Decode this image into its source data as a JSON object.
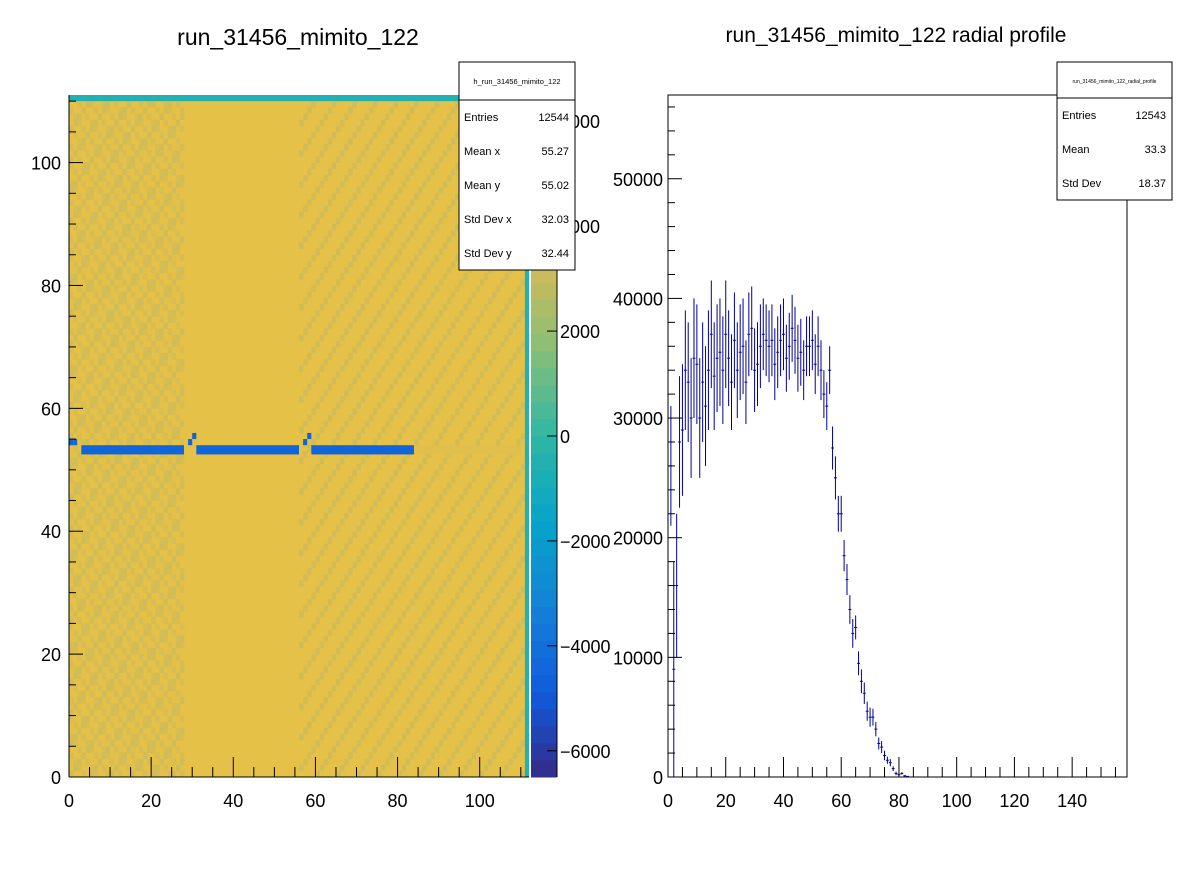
{
  "chart_data": [
    {
      "type": "heatmap",
      "title": "run_31456_mimito_122",
      "xlim": [
        0,
        112
      ],
      "ylim": [
        0,
        111
      ],
      "x_ticks": [
        0,
        20,
        40,
        60,
        80,
        100
      ],
      "y_ticks": [
        0,
        20,
        40,
        60,
        80,
        100
      ],
      "grid": false,
      "bins_x": 112,
      "bins_y": 111,
      "background_level": 4000,
      "top_row_level": -500,
      "right_column_level": -500,
      "low_band": {
        "y_bin": 53,
        "level": -4500,
        "segments": [
          [
            3,
            28
          ],
          [
            31,
            56
          ],
          [
            59,
            84
          ]
        ],
        "edge_level": -4500,
        "edge_cells": [
          [
            0,
            54
          ],
          [
            1,
            54
          ],
          [
            29,
            54
          ],
          [
            30,
            55
          ],
          [
            57,
            54
          ],
          [
            58,
            55
          ]
        ]
      },
      "faded_segment": {
        "y_bin": 53,
        "x_range": [
          84,
          110
        ],
        "level": 3800
      },
      "colorbar": {
        "zlim": [
          -6500,
          6500
        ],
        "ticks": [
          -6000,
          -4000,
          -2000,
          0,
          2000,
          4000,
          6000
        ],
        "tick_labels": [
          "−6000",
          "−4000",
          "−2000",
          "0",
          "2000",
          "4000",
          "6000"
        ],
        "palette": [
          "#352a87",
          "#0f5cdd",
          "#1481d6",
          "#06a4ca",
          "#2eb7a4",
          "#87bf77",
          "#d1bb59",
          "#fec832",
          "#f9fb0e"
        ]
      },
      "stats_box": {
        "name": "h_run_31456_mimito_122",
        "rows": [
          {
            "label": "Entries",
            "value": "12544"
          },
          {
            "label": "Mean x",
            "value": "55.27"
          },
          {
            "label": "Mean y",
            "value": "55.02"
          },
          {
            "label": "Std Dev x",
            "value": "32.03"
          },
          {
            "label": "Std Dev y",
            "value": "32.44"
          }
        ]
      }
    },
    {
      "type": "scatter",
      "style": "error-bars",
      "title": "run_31456_mimito_122 radial profile",
      "xlim": [
        0,
        159
      ],
      "ylim": [
        0,
        57000
      ],
      "x_ticks": [
        0,
        20,
        40,
        60,
        80,
        100,
        120,
        140
      ],
      "y_ticks": [
        0,
        10000,
        20000,
        30000,
        40000,
        50000
      ],
      "grid": false,
      "color": "#000099",
      "bin_width": 1,
      "x": [
        1,
        2,
        3,
        4,
        5,
        6,
        7,
        8,
        9,
        10,
        11,
        12,
        13,
        14,
        15,
        16,
        17,
        18,
        19,
        20,
        21,
        22,
        23,
        24,
        25,
        26,
        27,
        28,
        29,
        30,
        31,
        32,
        33,
        34,
        35,
        36,
        37,
        38,
        39,
        40,
        41,
        42,
        43,
        44,
        45,
        46,
        47,
        48,
        49,
        50,
        51,
        52,
        53,
        54,
        55,
        56,
        57,
        58,
        59,
        60,
        61,
        62,
        63,
        64,
        65,
        66,
        67,
        68,
        69,
        70,
        71,
        72,
        73,
        74,
        75,
        76,
        77,
        78,
        79,
        80,
        81,
        82,
        83
      ],
      "y": [
        26000,
        9000,
        16000,
        28000,
        29000,
        34000,
        33000,
        30000,
        35000,
        34500,
        30000,
        33000,
        31000,
        34000,
        37000,
        33500,
        35000,
        35500,
        34000,
        37000,
        35000,
        33000,
        36500,
        34000,
        35500,
        36000,
        33000,
        37000,
        37500,
        34000,
        34500,
        36000,
        37000,
        36500,
        36000,
        36500,
        34500,
        35500,
        36500,
        37000,
        35000,
        36000,
        37500,
        36500,
        35000,
        35500,
        34000,
        36000,
        36000,
        36500,
        34500,
        36000,
        34000,
        32000,
        31000,
        34000,
        27500,
        25000,
        22000,
        22000,
        18500,
        16500,
        14000,
        12000,
        12500,
        9500,
        8000,
        7000,
        5500,
        5000,
        5000,
        4000,
        2800,
        2500,
        1800,
        1400,
        1200,
        700,
        300,
        200,
        300,
        100,
        50
      ],
      "err": [
        5000,
        9000,
        6000,
        5500,
        5500,
        5000,
        5000,
        5000,
        5000,
        5000,
        5000,
        5000,
        5000,
        5000,
        4500,
        4500,
        4500,
        4500,
        4500,
        4500,
        4000,
        4000,
        4000,
        4000,
        4000,
        4000,
        3500,
        3500,
        3500,
        3500,
        3500,
        3500,
        3000,
        3000,
        3000,
        3000,
        3000,
        3000,
        3000,
        3000,
        2800,
        2800,
        2800,
        2800,
        2800,
        2800,
        2500,
        2500,
        2500,
        2500,
        2500,
        2500,
        2500,
        2000,
        2000,
        2000,
        1800,
        1800,
        1500,
        1500,
        1300,
        1300,
        1200,
        1200,
        1000,
        1000,
        1000,
        900,
        800,
        800,
        700,
        600,
        500,
        500,
        400,
        300,
        300,
        200,
        150,
        100,
        100,
        50,
        20
      ],
      "stats_box": {
        "name": "run_31456_mimito_122_radial_profile",
        "rows": [
          {
            "label": "Entries",
            "value": "12543"
          },
          {
            "label": "Mean",
            "value": "33.3"
          },
          {
            "label": "Std Dev",
            "value": "18.37"
          }
        ]
      }
    }
  ]
}
